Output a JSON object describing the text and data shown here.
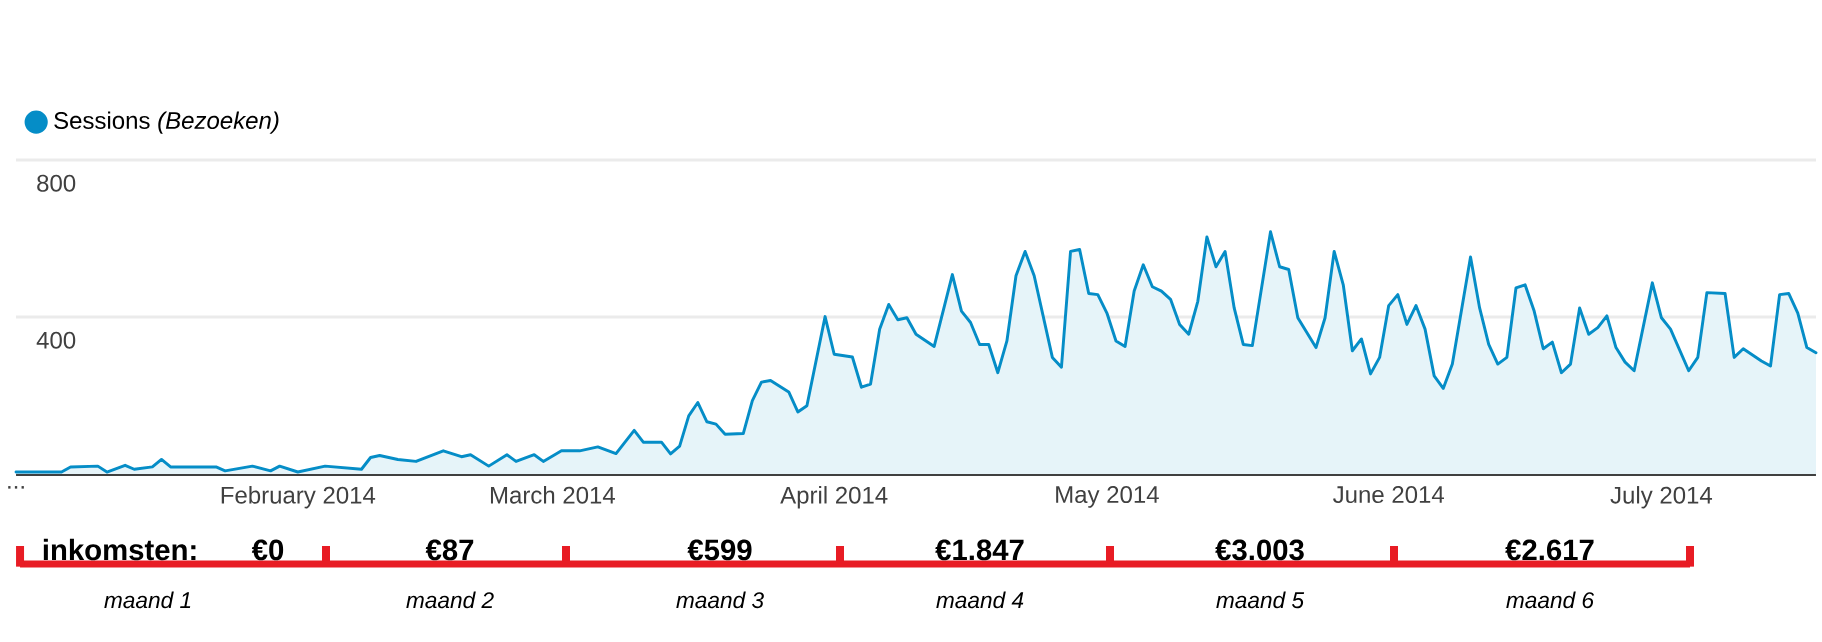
{
  "chart_data": {
    "type": "area",
    "x": [
      "2014-01-01",
      "2014-01-06",
      "2014-01-07",
      "2014-01-10",
      "2014-01-11",
      "2014-01-13",
      "2014-01-14",
      "2014-01-16",
      "2014-01-17",
      "2014-01-18",
      "2014-01-23",
      "2014-01-24",
      "2014-01-27",
      "2014-01-29",
      "2014-01-30",
      "2014-02-01",
      "2014-02-04",
      "2014-02-08",
      "2014-02-09",
      "2014-02-10",
      "2014-02-12",
      "2014-02-14",
      "2014-02-17",
      "2014-02-19",
      "2014-02-20",
      "2014-02-22",
      "2014-02-24",
      "2014-02-25",
      "2014-02-27",
      "2014-02-28",
      "2014-03-02",
      "2014-03-04",
      "2014-03-06",
      "2014-03-08",
      "2014-03-10",
      "2014-03-11",
      "2014-03-13",
      "2014-03-14",
      "2014-03-15",
      "2014-03-16",
      "2014-03-17",
      "2014-03-18",
      "2014-03-19",
      "2014-03-20",
      "2014-03-22",
      "2014-03-23",
      "2014-03-24",
      "2014-03-25",
      "2014-03-27",
      "2014-03-28",
      "2014-03-29",
      "2014-03-31",
      "2014-04-01",
      "2014-04-03",
      "2014-04-04",
      "2014-04-05",
      "2014-04-06",
      "2014-04-07",
      "2014-04-08",
      "2014-04-09",
      "2014-04-10",
      "2014-04-12",
      "2014-04-14",
      "2014-04-15",
      "2014-04-16",
      "2014-04-17",
      "2014-04-18",
      "2014-04-19",
      "2014-04-20",
      "2014-04-21",
      "2014-04-22",
      "2014-04-23",
      "2014-04-25",
      "2014-04-26",
      "2014-04-27",
      "2014-04-28",
      "2014-04-29",
      "2014-04-30",
      "2014-05-01",
      "2014-05-02",
      "2014-05-03",
      "2014-05-04",
      "2014-05-05",
      "2014-05-06",
      "2014-05-07",
      "2014-05-08",
      "2014-05-09",
      "2014-05-10",
      "2014-05-11",
      "2014-05-12",
      "2014-05-13",
      "2014-05-14",
      "2014-05-15",
      "2014-05-16",
      "2014-05-17",
      "2014-05-19",
      "2014-05-20",
      "2014-05-21",
      "2014-05-22",
      "2014-05-24",
      "2014-05-25",
      "2014-05-26",
      "2014-05-27",
      "2014-05-28",
      "2014-05-29",
      "2014-05-30",
      "2014-05-31",
      "2014-06-01",
      "2014-06-02",
      "2014-06-03",
      "2014-06-04",
      "2014-06-05",
      "2014-06-06",
      "2014-06-07",
      "2014-06-08",
      "2014-06-10",
      "2014-06-11",
      "2014-06-12",
      "2014-06-13",
      "2014-06-14",
      "2014-06-15",
      "2014-06-16",
      "2014-06-17",
      "2014-06-18",
      "2014-06-19",
      "2014-06-20",
      "2014-06-21",
      "2014-06-22",
      "2014-06-23",
      "2014-06-24",
      "2014-06-25",
      "2014-06-26",
      "2014-06-27",
      "2014-06-28",
      "2014-06-30",
      "2014-07-01",
      "2014-07-02",
      "2014-07-04",
      "2014-07-05",
      "2014-07-06",
      "2014-07-08",
      "2014-07-09",
      "2014-07-10",
      "2014-07-12",
      "2014-07-13",
      "2014-07-14",
      "2014-07-15",
      "2014-07-16",
      "2014-07-17",
      "2014-07-18"
    ],
    "series": [
      {
        "name": "Sessions *(Bezoeken)*",
        "color": "#058dc7",
        "values": [
          5,
          5,
          18,
          20,
          5,
          22,
          12,
          18,
          37,
          18,
          18,
          8,
          20,
          8,
          20,
          5,
          20,
          12,
          42,
          47,
          37,
          32,
          59,
          44,
          49,
          20,
          49,
          32,
          49,
          32,
          59,
          59,
          69,
          52,
          111,
          81,
          81,
          51,
          71,
          148,
          182,
          133,
          127,
          101,
          103,
          187,
          234,
          238,
          209,
          158,
          174,
          401,
          305,
          298,
          221,
          229,
          369,
          432,
          393,
          398,
          356,
          325,
          508,
          415,
          386,
          330,
          330,
          258,
          339,
          505,
          567,
          505,
          297,
          272,
          567,
          572,
          460,
          457,
          410,
          339,
          325,
          466,
          533,
          477,
          466,
          445,
          381,
          356,
          440,
          604,
          528,
          567,
          423,
          330,
          327,
          617,
          528,
          521,
          398,
          322,
          398,
          567,
          482,
          314,
          344,
          255,
          297,
          429,
          457,
          381,
          429,
          369,
          250,
          218,
          280,
          553,
          423,
          330,
          280,
          297,
          474,
          482,
          415,
          319,
          336,
          258,
          280,
          423,
          356,
          373,
          403,
          322,
          285,
          263,
          487,
          398,
          369,
          263,
          297,
          462,
          460,
          297,
          319,
          288,
          275,
          457,
          460,
          410,
          322,
          309
        ]
      }
    ],
    "xlim": [
      "2014-01-01",
      "2014-07-18"
    ],
    "xticks": [
      {
        "value": "2014-01-01",
        "label": "..."
      },
      {
        "value": "2014-02-01",
        "label": "February 2014"
      },
      {
        "value": "2014-03-01",
        "label": "March 2014"
      },
      {
        "value": "2014-04-01",
        "label": "April 2014"
      },
      {
        "value": "2014-05-01",
        "label": "May 2014"
      },
      {
        "value": "2014-06-01",
        "label": "June 2014"
      },
      {
        "value": "2014-07-01",
        "label": "July 2014"
      }
    ],
    "ylim": [
      0,
      800
    ],
    "yticks": [
      400,
      800
    ],
    "grid": "y",
    "legend": "top left",
    "annotations": [
      "inkomsten:",
      "€0",
      "€87",
      "€599",
      "€1.847",
      "€3.003",
      "€2.617",
      "maand 1",
      "maand 2",
      "maand 3",
      "maand 4",
      "maand 5",
      "maand 6"
    ]
  }
}
